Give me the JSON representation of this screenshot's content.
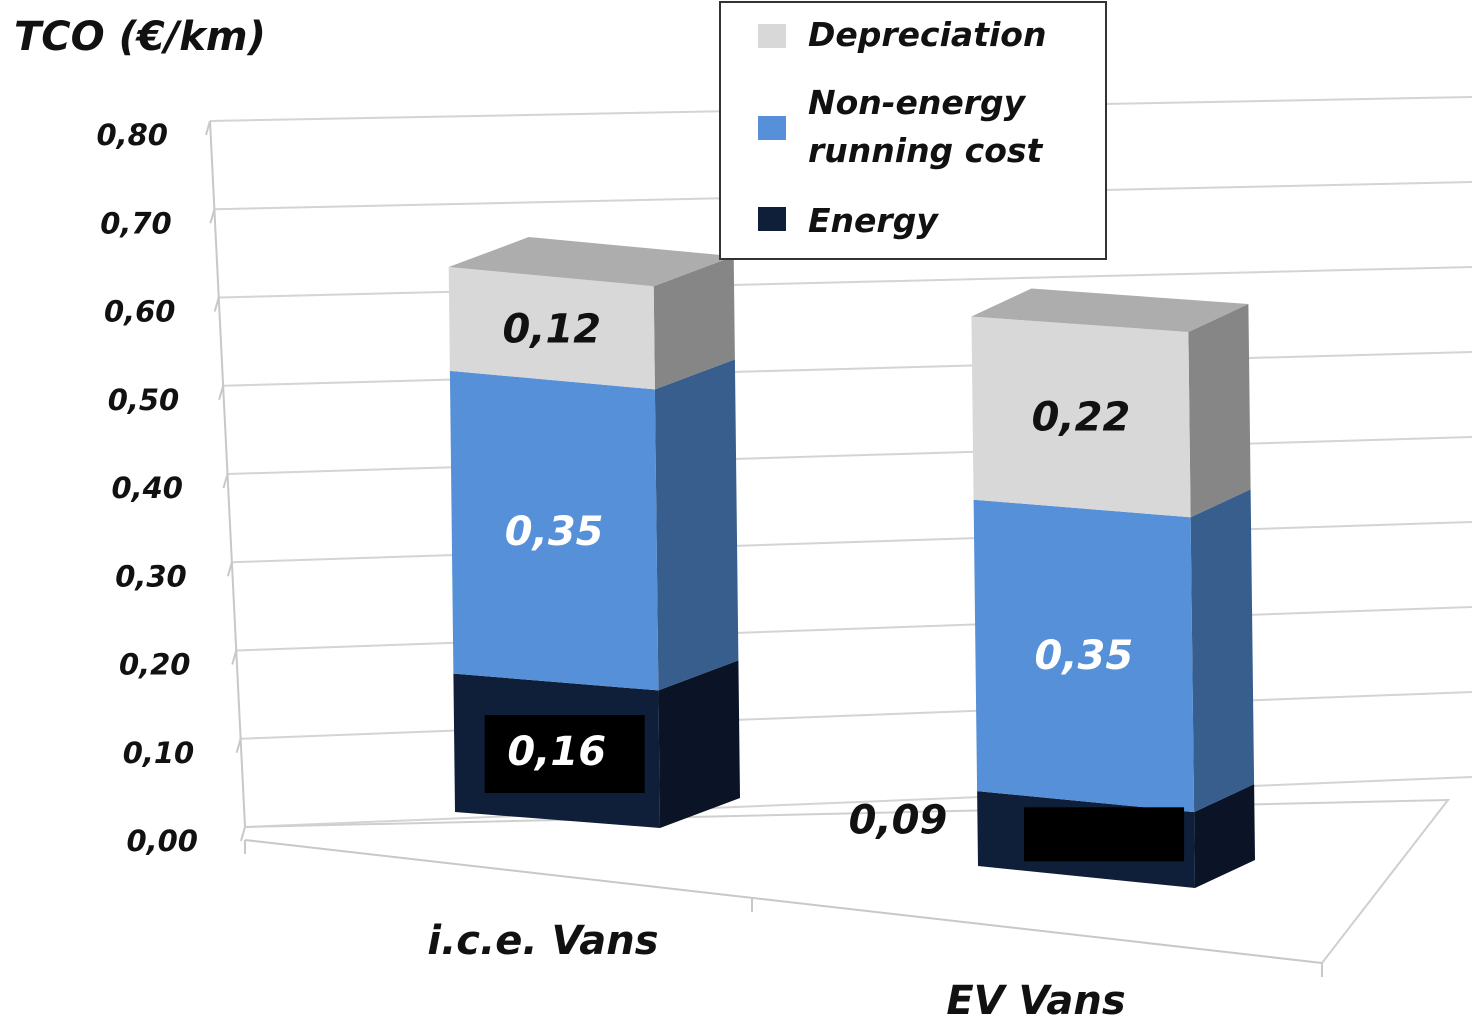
{
  "chart_data": {
    "type": "bar",
    "stacked": true,
    "three_d": true,
    "y_title": "TCO  (€/km)",
    "categories": [
      "i.c.e. Vans",
      "EV  Vans"
    ],
    "y_ticks": [
      "0,00",
      "0,10",
      "0,20",
      "0,30",
      "0,40",
      "0,50",
      "0,60",
      "0,70",
      "0,80"
    ],
    "ylim": [
      0,
      0.8
    ],
    "grid": true,
    "legend_position": "top-center",
    "series": [
      {
        "name": "Energy",
        "values": [
          0.16,
          0.09
        ],
        "labels": [
          "0,16",
          "0,09"
        ],
        "color": "#0f1f3a"
      },
      {
        "name": "Non-energy running cost",
        "legend_lines": [
          "Non-energy",
          "running cost"
        ],
        "values": [
          0.35,
          0.35
        ],
        "labels": [
          "0,35",
          "0,35"
        ],
        "color": "#5590d8"
      },
      {
        "name": "Depreciation",
        "values": [
          0.12,
          0.22
        ],
        "labels": [
          "0,12",
          "0,22"
        ],
        "color": "#d8d8d8"
      }
    ]
  }
}
